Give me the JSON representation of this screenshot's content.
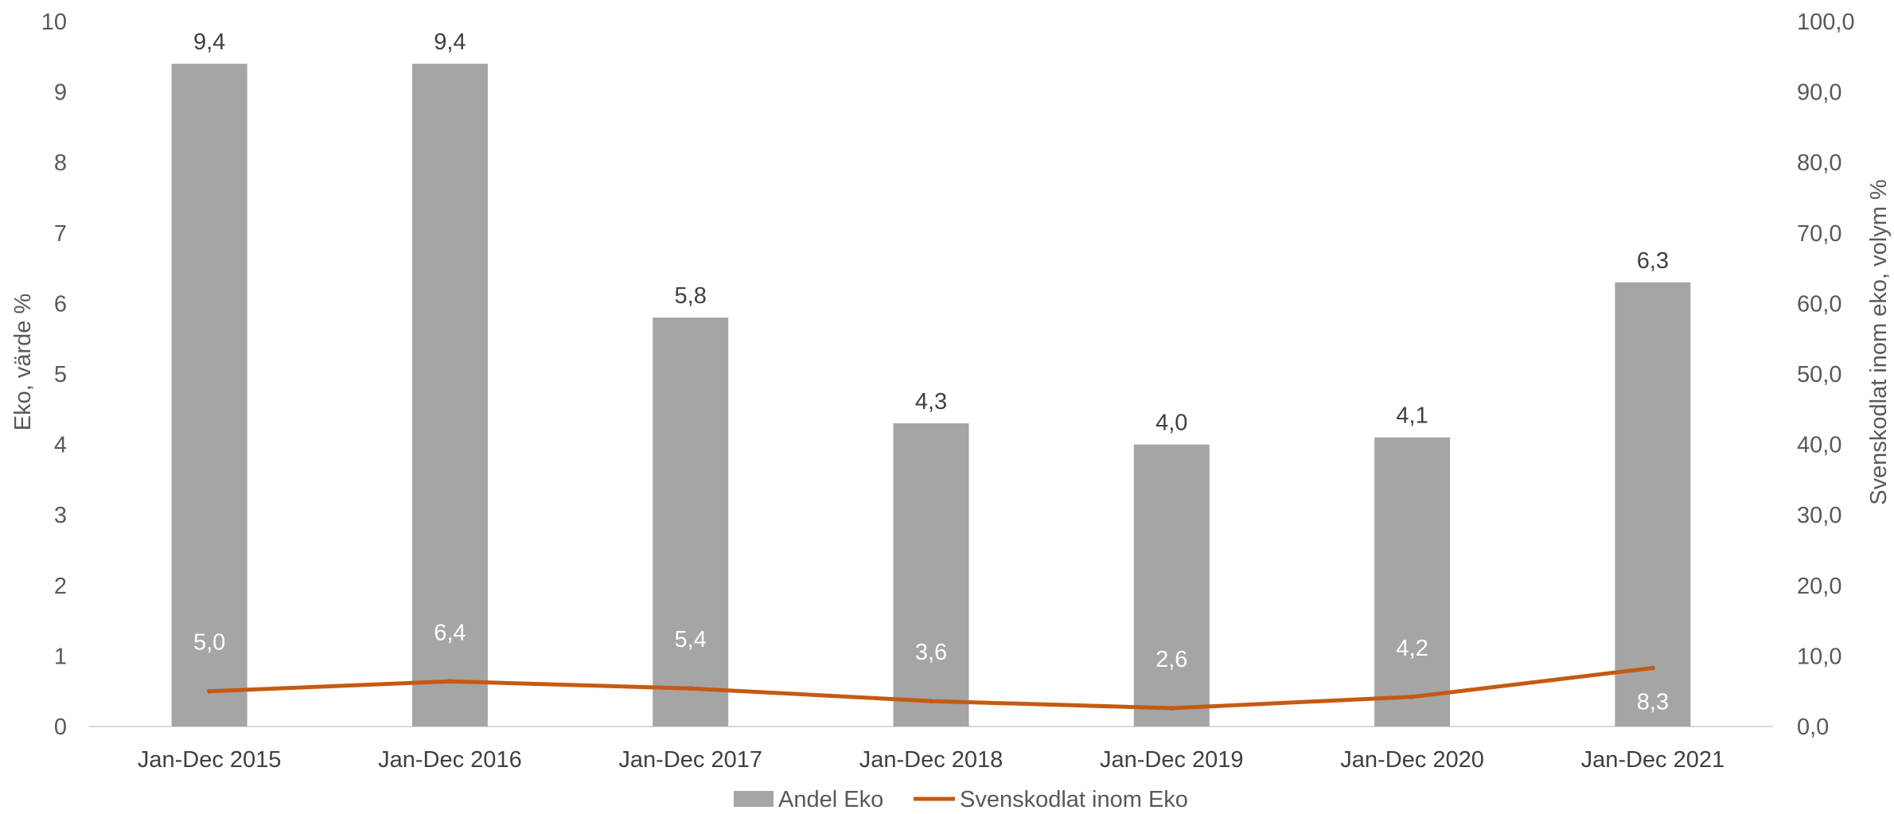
{
  "chart_data": {
    "type": "bar",
    "categories": [
      "Jan-Dec 2015",
      "Jan-Dec 2016",
      "Jan-Dec 2017",
      "Jan-Dec 2018",
      "Jan-Dec 2019",
      "Jan-Dec 2020",
      "Jan-Dec 2021"
    ],
    "series": [
      {
        "name": "Andel Eko",
        "type": "bar",
        "axis": "left",
        "values": [
          9.4,
          9.4,
          5.8,
          4.3,
          4.0,
          4.1,
          6.3
        ],
        "labels": [
          "9,4",
          "9,4",
          "5,8",
          "4,3",
          "4,0",
          "4,1",
          "6,3"
        ],
        "color": "#a5a5a5"
      },
      {
        "name": "Svenskodlat inom Eko",
        "type": "line",
        "axis": "right",
        "values": [
          5.0,
          6.4,
          5.4,
          3.6,
          2.6,
          4.2,
          8.3
        ],
        "labels": [
          "5,0",
          "6,4",
          "5,4",
          "3,6",
          "2,6",
          "4,2",
          "8,3"
        ],
        "color": "#c55a11"
      }
    ],
    "y_left": {
      "label": "Eko, värde %",
      "range": [
        0,
        10
      ],
      "ticks": [
        "0",
        "1",
        "2",
        "3",
        "4",
        "5",
        "6",
        "7",
        "8",
        "9",
        "10"
      ]
    },
    "y_right": {
      "label": "Svenskodlat inom eko, volym %",
      "range": [
        0,
        100
      ],
      "ticks": [
        "0,0",
        "10,0",
        "20,0",
        "30,0",
        "40,0",
        "50,0",
        "60,0",
        "70,0",
        "80,0",
        "90,0",
        "100,0"
      ]
    },
    "grid": false,
    "legend": "bottom"
  }
}
